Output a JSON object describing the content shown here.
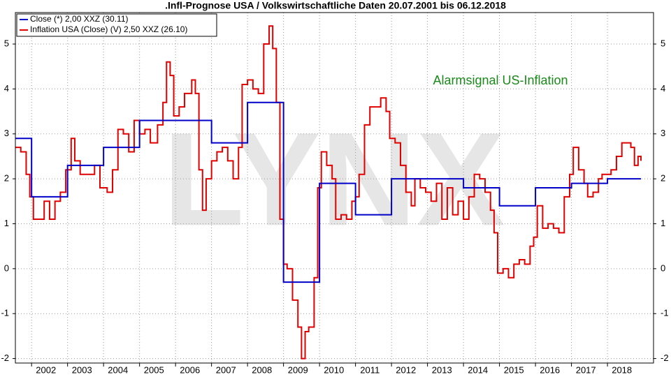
{
  "chart_data": {
    "type": "line",
    "title": ".Infl-Prognose USA / Volkswirtschaftliche Daten 20.07.2001 bis 06.12.2018",
    "annotation": "Alarmsignal US-Inflation",
    "watermark": "LYNX",
    "step": true,
    "grid": true,
    "legend": "top-left",
    "xlim": [
      2001.55,
      2019.28
    ],
    "xticks": [
      2002,
      2003,
      2004,
      2005,
      2006,
      2007,
      2008,
      2009,
      2010,
      2011,
      2012,
      2013,
      2014,
      2015,
      2016,
      2017,
      2018
    ],
    "ylim": [
      -2.1,
      5.7
    ],
    "yticks": [
      -2,
      -1,
      0,
      1,
      2,
      3,
      4,
      5
    ],
    "series": [
      {
        "name": "Close (*) 2,00 XXZ (30.11)",
        "color": "#0000c8",
        "x": [
          2001.55,
          2002,
          2003,
          2004,
          2005,
          2007,
          2008,
          2009,
          2010,
          2011,
          2012,
          2014,
          2015,
          2016,
          2017,
          2018,
          2018.93
        ],
        "values": [
          2.9,
          1.6,
          2.3,
          2.7,
          3.3,
          2.8,
          3.7,
          -0.3,
          1.9,
          1.2,
          2.0,
          1.8,
          1.4,
          1.8,
          1.9,
          2.0,
          2.0
        ]
      },
      {
        "name": "Inflation USA (Close) (V) 2,50 XXZ (26.10)",
        "color": "#e00000",
        "x": [
          2001.55,
          2001.7,
          2001.85,
          2001.95,
          2002.05,
          2002.2,
          2002.35,
          2002.5,
          2002.65,
          2002.8,
          2002.95,
          2003.1,
          2003.2,
          2003.35,
          2003.55,
          2003.75,
          2003.9,
          2004.1,
          2004.25,
          2004.4,
          2004.55,
          2004.7,
          2004.85,
          2005.0,
          2005.15,
          2005.3,
          2005.5,
          2005.65,
          2005.75,
          2005.85,
          2005.95,
          2006.1,
          2006.25,
          2006.45,
          2006.55,
          2006.65,
          2006.75,
          2006.85,
          2007.0,
          2007.15,
          2007.3,
          2007.45,
          2007.6,
          2007.75,
          2007.85,
          2008.0,
          2008.15,
          2008.3,
          2008.45,
          2008.6,
          2008.7,
          2008.8,
          2008.9,
          2009.0,
          2009.1,
          2009.25,
          2009.4,
          2009.5,
          2009.6,
          2009.7,
          2009.85,
          2009.95,
          2010.05,
          2010.2,
          2010.35,
          2010.45,
          2010.6,
          2010.75,
          2010.9,
          2011.0,
          2011.1,
          2011.25,
          2011.4,
          2011.55,
          2011.7,
          2011.85,
          2011.95,
          2012.1,
          2012.25,
          2012.4,
          2012.55,
          2012.65,
          2012.8,
          2012.95,
          2013.1,
          2013.25,
          2013.4,
          2013.55,
          2013.7,
          2013.85,
          2014.0,
          2014.15,
          2014.3,
          2014.45,
          2014.6,
          2014.75,
          2014.85,
          2014.95,
          2015.1,
          2015.25,
          2015.4,
          2015.55,
          2015.7,
          2015.85,
          2015.95,
          2016.05,
          2016.2,
          2016.35,
          2016.5,
          2016.65,
          2016.8,
          2016.95,
          2017.05,
          2017.2,
          2017.35,
          2017.45,
          2017.6,
          2017.75,
          2017.85,
          2017.95,
          2018.1,
          2018.25,
          2018.4,
          2018.55,
          2018.65,
          2018.75,
          2018.85,
          2018.93
        ],
        "values": [
          2.7,
          2.6,
          2.1,
          1.6,
          1.1,
          1.1,
          1.5,
          1.1,
          1.5,
          1.7,
          2.2,
          2.9,
          2.4,
          2.1,
          2.1,
          2.3,
          1.8,
          1.7,
          2.2,
          3.1,
          3.0,
          2.6,
          3.3,
          3.0,
          3.1,
          2.8,
          3.2,
          3.7,
          4.6,
          4.3,
          3.4,
          3.6,
          3.9,
          4.2,
          3.9,
          2.2,
          1.3,
          2.0,
          2.4,
          2.6,
          2.7,
          2.4,
          2.0,
          2.7,
          4.1,
          4.2,
          4.0,
          3.9,
          5.0,
          5.4,
          4.9,
          3.7,
          1.1,
          0.1,
          0.0,
          -0.7,
          -1.3,
          -2.0,
          -1.4,
          -1.3,
          -0.2,
          1.8,
          2.6,
          2.3,
          2.0,
          1.1,
          1.2,
          1.1,
          1.5,
          1.6,
          2.1,
          3.2,
          3.6,
          3.6,
          3.8,
          3.5,
          2.9,
          2.8,
          2.3,
          1.7,
          1.4,
          2.0,
          1.8,
          1.7,
          1.5,
          1.9,
          1.1,
          1.8,
          1.2,
          1.5,
          1.1,
          1.6,
          2.1,
          2.0,
          1.7,
          1.3,
          0.8,
          -0.1,
          0.0,
          -0.2,
          0.1,
          0.2,
          0.1,
          0.5,
          0.7,
          1.4,
          0.9,
          1.0,
          0.9,
          0.8,
          1.6,
          2.1,
          2.7,
          2.2,
          1.9,
          1.6,
          1.7,
          2.0,
          2.1,
          2.1,
          2.2,
          2.5,
          2.8,
          2.8,
          2.7,
          2.3,
          2.5,
          2.4
        ]
      }
    ]
  }
}
